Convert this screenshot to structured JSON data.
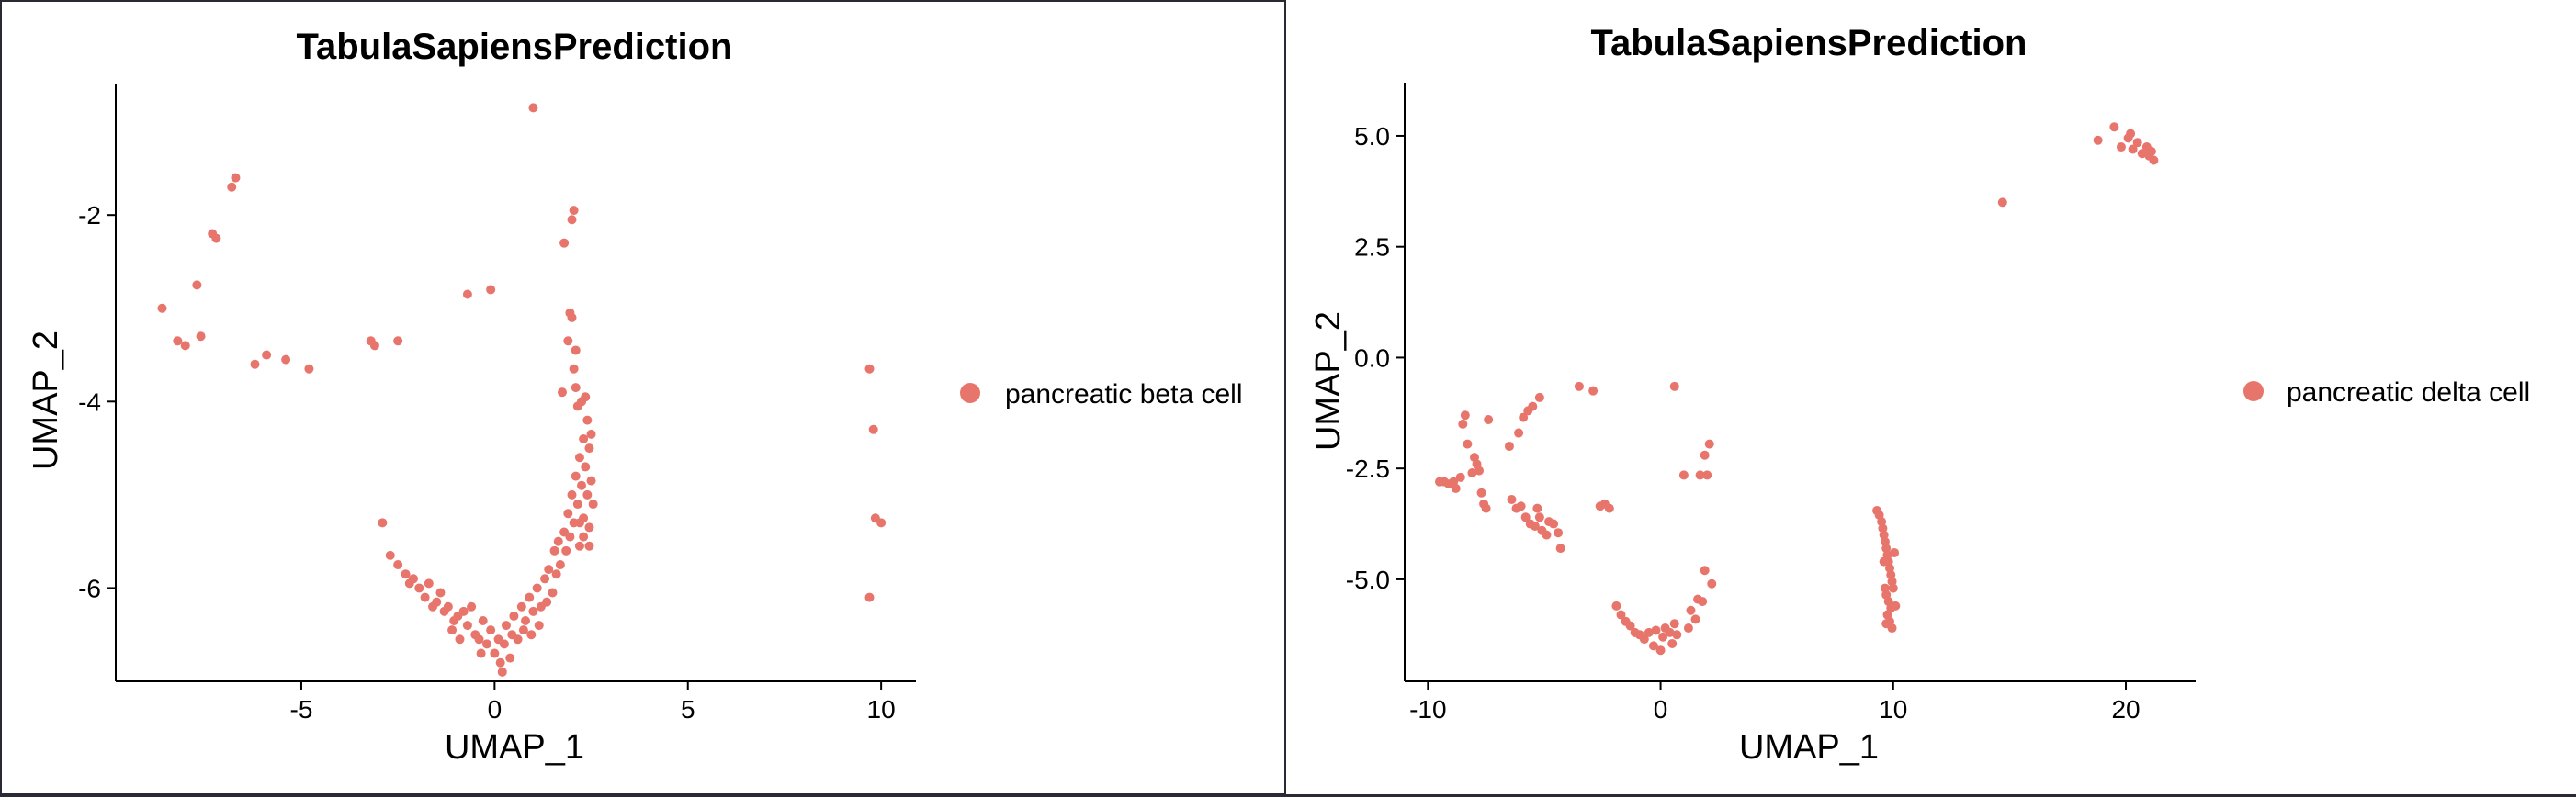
{
  "chart_data": [
    {
      "type": "scatter",
      "title": "TabulaSapiensPrediction",
      "xlabel": "UMAP_1",
      "ylabel": "UMAP_2",
      "xlim": [
        -9.8,
        10.9
      ],
      "ylim": [
        -7.0,
        -0.6
      ],
      "xticks": [
        -5,
        0,
        5,
        10
      ],
      "xtick_labels": [
        "-5",
        "0",
        "5",
        "10"
      ],
      "yticks": [
        -6,
        -4,
        -2
      ],
      "ytick_labels": [
        "-6",
        "-4",
        "-2"
      ],
      "grid": false,
      "legend_position": "right",
      "color": "#e8756c",
      "series": [
        {
          "name": "pancreatic beta cell",
          "points": [
            [
              -8.6,
              -3.0
            ],
            [
              -8.2,
              -3.35
            ],
            [
              -8.0,
              -3.4
            ],
            [
              -7.7,
              -2.75
            ],
            [
              -7.6,
              -3.3
            ],
            [
              -7.3,
              -2.2
            ],
            [
              -7.2,
              -2.25
            ],
            [
              -6.8,
              -1.7
            ],
            [
              -6.7,
              -1.6
            ],
            [
              -6.2,
              -3.6
            ],
            [
              -5.9,
              -3.5
            ],
            [
              -5.4,
              -3.55
            ],
            [
              -4.8,
              -3.65
            ],
            [
              -3.2,
              -3.35
            ],
            [
              -3.1,
              -3.4
            ],
            [
              -2.5,
              -3.35
            ],
            [
              -0.7,
              -2.85
            ],
            [
              -0.1,
              -2.8
            ],
            [
              1.0,
              -0.85
            ],
            [
              1.8,
              -2.3
            ],
            [
              2.0,
              -2.05
            ],
            [
              2.05,
              -1.95
            ],
            [
              9.7,
              -3.65
            ],
            [
              9.8,
              -4.3
            ],
            [
              9.85,
              -5.25
            ],
            [
              10.0,
              -5.3
            ],
            [
              9.7,
              -6.1
            ],
            [
              -2.9,
              -5.3
            ],
            [
              -2.7,
              -5.65
            ],
            [
              -2.5,
              -5.75
            ],
            [
              -2.3,
              -5.85
            ],
            [
              -2.2,
              -5.95
            ],
            [
              -2.1,
              -5.9
            ],
            [
              -1.95,
              -6.0
            ],
            [
              -1.8,
              -6.1
            ],
            [
              -1.7,
              -5.95
            ],
            [
              -1.6,
              -6.2
            ],
            [
              -1.5,
              -6.15
            ],
            [
              -1.4,
              -6.05
            ],
            [
              -1.3,
              -6.25
            ],
            [
              -1.2,
              -6.2
            ],
            [
              -1.05,
              -6.35
            ],
            [
              -0.95,
              -6.3
            ],
            [
              -0.8,
              -6.25
            ],
            [
              -0.7,
              -6.4
            ],
            [
              -0.6,
              -6.2
            ],
            [
              -0.5,
              -6.5
            ],
            [
              -0.4,
              -6.55
            ],
            [
              -0.3,
              -6.35
            ],
            [
              -0.2,
              -6.6
            ],
            [
              -0.1,
              -6.45
            ],
            [
              0.0,
              -6.7
            ],
            [
              0.1,
              -6.55
            ],
            [
              0.15,
              -6.8
            ],
            [
              0.25,
              -6.6
            ],
            [
              0.3,
              -6.4
            ],
            [
              0.4,
              -6.75
            ],
            [
              0.45,
              -6.5
            ],
            [
              0.5,
              -6.3
            ],
            [
              0.6,
              -6.55
            ],
            [
              0.7,
              -6.2
            ],
            [
              0.75,
              -6.45
            ],
            [
              0.8,
              -6.35
            ],
            [
              0.9,
              -6.1
            ],
            [
              0.95,
              -6.5
            ],
            [
              1.0,
              -6.25
            ],
            [
              1.1,
              -6.0
            ],
            [
              1.15,
              -6.4
            ],
            [
              1.2,
              -6.2
            ],
            [
              1.3,
              -5.9
            ],
            [
              1.35,
              -6.15
            ],
            [
              1.4,
              -5.8
            ],
            [
              1.5,
              -6.05
            ],
            [
              1.55,
              -5.6
            ],
            [
              1.6,
              -5.85
            ],
            [
              1.65,
              -5.5
            ],
            [
              1.7,
              -5.75
            ],
            [
              1.8,
              -5.4
            ],
            [
              1.85,
              -5.6
            ],
            [
              1.9,
              -5.2
            ],
            [
              1.95,
              -5.45
            ],
            [
              2.0,
              -5.0
            ],
            [
              2.05,
              -5.3
            ],
            [
              2.1,
              -4.8
            ],
            [
              2.15,
              -5.1
            ],
            [
              2.2,
              -4.6
            ],
            [
              2.25,
              -4.9
            ],
            [
              2.3,
              -4.4
            ],
            [
              2.3,
              -5.25
            ],
            [
              2.35,
              -4.7
            ],
            [
              2.4,
              -4.2
            ],
            [
              2.4,
              -5.0
            ],
            [
              2.45,
              -4.5
            ],
            [
              2.45,
              -5.35
            ],
            [
              2.5,
              -4.35
            ],
            [
              2.5,
              -4.85
            ],
            [
              2.55,
              -5.1
            ],
            [
              2.3,
              -5.45
            ],
            [
              2.2,
              -5.55
            ],
            [
              2.15,
              -4.05
            ],
            [
              2.1,
              -3.85
            ],
            [
              2.05,
              -3.65
            ],
            [
              2.0,
              -3.1
            ],
            [
              1.95,
              -3.05
            ],
            [
              1.9,
              -3.35
            ],
            [
              2.1,
              -3.45
            ],
            [
              1.75,
              -3.9
            ],
            [
              2.25,
              -4.0
            ],
            [
              2.35,
              -3.95
            ],
            [
              2.2,
              -5.3
            ],
            [
              2.45,
              -5.55
            ],
            [
              -0.35,
              -6.7
            ],
            [
              0.2,
              -6.9
            ],
            [
              -0.9,
              -6.55
            ],
            [
              -1.1,
              -6.45
            ]
          ]
        }
      ]
    },
    {
      "type": "scatter",
      "title": "TabulaSapiensPrediction",
      "xlabel": "UMAP_1",
      "ylabel": "UMAP_2",
      "xlim": [
        -11.0,
        23.0
      ],
      "ylim": [
        -7.3,
        6.2
      ],
      "xticks": [
        -10,
        0,
        10,
        20
      ],
      "xtick_labels": [
        "-10",
        "0",
        "10",
        "20"
      ],
      "yticks": [
        -5.0,
        -2.5,
        0.0,
        2.5,
        5.0
      ],
      "ytick_labels": [
        "-5.0",
        "-2.5",
        "0.0",
        "2.5",
        "5.0"
      ],
      "grid": false,
      "legend_position": "right",
      "color": "#e8756c",
      "series": [
        {
          "name": "pancreatic delta cell",
          "points": [
            [
              -9.5,
              -2.8
            ],
            [
              -9.3,
              -2.8
            ],
            [
              -9.1,
              -2.85
            ],
            [
              -8.9,
              -2.8
            ],
            [
              -8.8,
              -2.95
            ],
            [
              -8.6,
              -2.7
            ],
            [
              -8.5,
              -1.5
            ],
            [
              -8.4,
              -1.3
            ],
            [
              -8.3,
              -1.95
            ],
            [
              -8.1,
              -2.6
            ],
            [
              -8.0,
              -2.25
            ],
            [
              -7.9,
              -2.4
            ],
            [
              -7.8,
              -2.55
            ],
            [
              -7.7,
              -3.05
            ],
            [
              -7.6,
              -3.3
            ],
            [
              -7.5,
              -3.4
            ],
            [
              -7.4,
              -1.4
            ],
            [
              -6.5,
              -2.0
            ],
            [
              -6.1,
              -1.7
            ],
            [
              -5.9,
              -1.35
            ],
            [
              -5.7,
              -1.2
            ],
            [
              -5.5,
              -1.1
            ],
            [
              -5.2,
              -0.9
            ],
            [
              -6.4,
              -3.2
            ],
            [
              -6.2,
              -3.4
            ],
            [
              -6.0,
              -3.35
            ],
            [
              -5.8,
              -3.6
            ],
            [
              -5.6,
              -3.75
            ],
            [
              -5.4,
              -3.8
            ],
            [
              -5.2,
              -3.6
            ],
            [
              -5.1,
              -3.9
            ],
            [
              -4.9,
              -4.0
            ],
            [
              -4.8,
              -3.7
            ],
            [
              -4.6,
              -3.75
            ],
            [
              -4.4,
              -3.95
            ],
            [
              -4.3,
              -4.3
            ],
            [
              -5.3,
              -3.4
            ],
            [
              -3.5,
              -0.65
            ],
            [
              -2.9,
              -0.75
            ],
            [
              -2.6,
              -3.35
            ],
            [
              -2.4,
              -3.3
            ],
            [
              -2.2,
              -3.4
            ],
            [
              -1.9,
              -5.6
            ],
            [
              -1.7,
              -5.8
            ],
            [
              -1.5,
              -5.95
            ],
            [
              -1.3,
              -6.05
            ],
            [
              -1.1,
              -6.2
            ],
            [
              -0.9,
              -6.25
            ],
            [
              -0.7,
              -6.35
            ],
            [
              -0.5,
              -6.2
            ],
            [
              -0.3,
              -6.5
            ],
            [
              -0.2,
              -6.15
            ],
            [
              0.0,
              -6.6
            ],
            [
              0.1,
              -6.3
            ],
            [
              0.2,
              -6.1
            ],
            [
              0.4,
              -6.2
            ],
            [
              0.5,
              -6.45
            ],
            [
              0.6,
              -6.0
            ],
            [
              0.7,
              -6.25
            ],
            [
              1.2,
              -6.1
            ],
            [
              1.3,
              -5.7
            ],
            [
              1.5,
              -5.9
            ],
            [
              1.6,
              -5.45
            ],
            [
              1.8,
              -5.5
            ],
            [
              1.7,
              -2.65
            ],
            [
              1.9,
              -2.2
            ],
            [
              2.0,
              -2.65
            ],
            [
              2.1,
              -1.95
            ],
            [
              1.9,
              -4.8
            ],
            [
              2.2,
              -5.1
            ],
            [
              0.6,
              -0.65
            ],
            [
              1.0,
              -2.65
            ],
            [
              9.3,
              -3.45
            ],
            [
              9.4,
              -3.55
            ],
            [
              9.5,
              -3.7
            ],
            [
              9.55,
              -3.85
            ],
            [
              9.6,
              -4.0
            ],
            [
              9.65,
              -4.15
            ],
            [
              9.7,
              -4.3
            ],
            [
              9.75,
              -4.45
            ],
            [
              9.8,
              -4.6
            ],
            [
              9.85,
              -4.75
            ],
            [
              9.9,
              -4.9
            ],
            [
              9.95,
              -5.05
            ],
            [
              10.0,
              -5.2
            ],
            [
              9.7,
              -5.35
            ],
            [
              9.8,
              -5.5
            ],
            [
              9.9,
              -5.65
            ],
            [
              9.75,
              -5.8
            ],
            [
              9.85,
              -5.95
            ],
            [
              9.95,
              -6.1
            ],
            [
              9.65,
              -5.2
            ],
            [
              10.05,
              -4.4
            ],
            [
              9.6,
              -4.6
            ],
            [
              10.1,
              -5.6
            ],
            [
              9.7,
              -6.0
            ],
            [
              14.7,
              3.5
            ],
            [
              18.8,
              4.9
            ],
            [
              19.5,
              5.2
            ],
            [
              19.8,
              4.75
            ],
            [
              20.1,
              4.95
            ],
            [
              20.3,
              4.7
            ],
            [
              20.5,
              4.85
            ],
            [
              20.7,
              4.6
            ],
            [
              20.9,
              4.75
            ],
            [
              21.0,
              4.55
            ],
            [
              21.1,
              4.65
            ],
            [
              21.2,
              4.45
            ],
            [
              20.2,
              5.05
            ]
          ]
        }
      ]
    }
  ]
}
